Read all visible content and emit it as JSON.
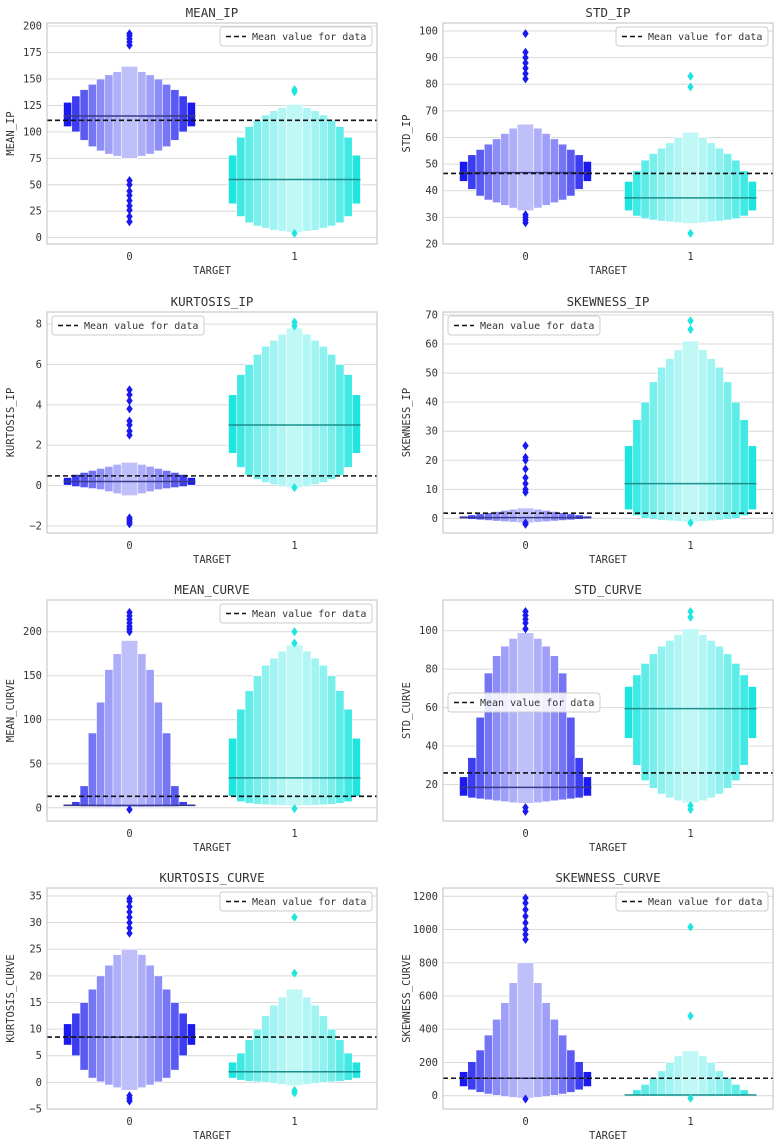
{
  "colors": {
    "target0": "#1a1aee",
    "target1": "#1fe5e0",
    "median0": "#3a3a8a",
    "median1": "#1b8f8b",
    "meanline": "#111111",
    "grid": "#d9d9d9",
    "frame": "#bfbfbf"
  },
  "chart_data": [
    {
      "type": "boxen",
      "title": "MEAN_IP",
      "xlabel": "TARGET",
      "ylabel": "MEAN_IP",
      "categories": [
        "0",
        "1"
      ],
      "ylim": [
        -6,
        203
      ],
      "yticks": [
        0,
        25,
        50,
        75,
        100,
        125,
        150,
        175,
        200
      ],
      "legend": {
        "label": "Mean value for data",
        "position": "top-right"
      },
      "mean_value": 111,
      "groups": [
        {
          "median": 115,
          "boxes": [
            [
              105,
              128
            ],
            [
              100,
              134
            ],
            [
              92,
              140
            ],
            [
              86,
              145
            ],
            [
              82,
              150
            ],
            [
              79,
              154
            ],
            [
              77,
              157
            ],
            [
              75,
              162
            ]
          ],
          "outliers": [
            15,
            20,
            26,
            30,
            35,
            40,
            44,
            50,
            54,
            182,
            185,
            188,
            191,
            193
          ]
        },
        {
          "median": 55,
          "boxes": [
            [
              32,
              78
            ],
            [
              20,
              95
            ],
            [
              14,
              105
            ],
            [
              11,
              111
            ],
            [
              9,
              116
            ],
            [
              7,
              120
            ],
            [
              6,
              123
            ],
            [
              5,
              126
            ]
          ],
          "outliers": [
            4,
            138,
            140
          ]
        }
      ]
    },
    {
      "type": "boxen",
      "title": "STD_IP",
      "xlabel": "TARGET",
      "ylabel": "STD_IP",
      "categories": [
        "0",
        "1"
      ],
      "ylim": [
        20,
        103
      ],
      "yticks": [
        20,
        30,
        40,
        50,
        60,
        70,
        80,
        90,
        100
      ],
      "legend": {
        "label": "Mean value for data",
        "position": "top-right"
      },
      "mean_value": 46.5,
      "groups": [
        {
          "median": 46.8,
          "boxes": [
            [
              43.5,
              51
            ],
            [
              40.5,
              53.5
            ],
            [
              38,
              55.5
            ],
            [
              36.5,
              57.5
            ],
            [
              35.5,
              59.5
            ],
            [
              34.5,
              61.5
            ],
            [
              33.5,
              63.5
            ],
            [
              32.5,
              65
            ]
          ],
          "outliers": [
            28,
            29,
            30,
            31,
            82,
            84,
            86,
            88,
            90,
            92,
            99
          ]
        },
        {
          "median": 37.3,
          "boxes": [
            [
              32.5,
              43.5
            ],
            [
              30.5,
              47.5
            ],
            [
              29.5,
              51.5
            ],
            [
              29,
              54
            ],
            [
              28.6,
              56
            ],
            [
              28.3,
              58
            ],
            [
              28,
              60
            ],
            [
              27.7,
              62
            ]
          ],
          "outliers": [
            24,
            79,
            83
          ]
        }
      ]
    },
    {
      "type": "boxen",
      "title": "KURTOSIS_IP",
      "xlabel": "TARGET",
      "ylabel": "KURTOSIS_IP",
      "categories": [
        "0",
        "1"
      ],
      "ylim": [
        -2.35,
        8.6
      ],
      "yticks": [
        -2,
        0,
        2,
        4,
        6,
        8
      ],
      "legend": {
        "label": "Mean value for data",
        "position": "top-left"
      },
      "mean_value": 0.48,
      "groups": [
        {
          "median": 0.2,
          "boxes": [
            [
              0.02,
              0.4
            ],
            [
              -0.05,
              0.55
            ],
            [
              -0.1,
              0.65
            ],
            [
              -0.15,
              0.75
            ],
            [
              -0.2,
              0.85
            ],
            [
              -0.3,
              0.95
            ],
            [
              -0.4,
              1.05
            ],
            [
              -0.5,
              1.15
            ]
          ],
          "outliers": [
            -1.9,
            -1.8,
            -1.7,
            -1.6,
            2.5,
            2.7,
            3.0,
            3.2,
            3.8,
            4.2,
            4.5,
            4.75
          ]
        },
        {
          "median": 3.0,
          "boxes": [
            [
              1.6,
              4.5
            ],
            [
              0.9,
              5.5
            ],
            [
              0.5,
              6.0
            ],
            [
              0.3,
              6.5
            ],
            [
              0.15,
              6.9
            ],
            [
              0.05,
              7.2
            ],
            [
              -0.05,
              7.5
            ],
            [
              -0.1,
              7.8
            ]
          ],
          "outliers": [
            -0.1,
            7.9,
            8.1
          ]
        }
      ]
    },
    {
      "type": "boxen",
      "title": "SKEWNESS_IP",
      "xlabel": "TARGET",
      "ylabel": "SKEWNESS_IP",
      "categories": [
        "0",
        "1"
      ],
      "ylim": [
        -5,
        71
      ],
      "yticks": [
        0,
        10,
        20,
        30,
        40,
        50,
        60,
        70
      ],
      "legend": {
        "label": "Mean value for data",
        "position": "top-left"
      },
      "mean_value": 1.8,
      "groups": [
        {
          "median": 0.3,
          "boxes": [
            [
              -0.1,
              0.8
            ],
            [
              -0.3,
              1.2
            ],
            [
              -0.5,
              1.6
            ],
            [
              -0.7,
              2.0
            ],
            [
              -0.9,
              2.4
            ],
            [
              -1.1,
              2.8
            ],
            [
              -1.3,
              3.2
            ],
            [
              -1.5,
              3.6
            ]
          ],
          "outliers": [
            -2,
            -1.5,
            9,
            10,
            12,
            14,
            17,
            20,
            21,
            25
          ]
        },
        {
          "median": 12,
          "boxes": [
            [
              3,
              25
            ],
            [
              1,
              34
            ],
            [
              0,
              40
            ],
            [
              -0.3,
              47
            ],
            [
              -0.6,
              52
            ],
            [
              -0.8,
              55
            ],
            [
              -1,
              58
            ],
            [
              -1.2,
              61
            ]
          ],
          "outliers": [
            -1.5,
            65,
            68
          ]
        }
      ]
    },
    {
      "type": "boxen",
      "title": "MEAN_CURVE",
      "xlabel": "TARGET",
      "ylabel": "MEAN_CURVE",
      "categories": [
        "0",
        "1"
      ],
      "ylim": [
        -15,
        236
      ],
      "yticks": [
        0,
        50,
        100,
        150,
        200
      ],
      "legend": {
        "label": "Mean value for data",
        "position": "top-right"
      },
      "mean_value": 13,
      "groups": [
        {
          "median": 2.8,
          "boxes": [
            [
              2,
              4
            ],
            [
              1.7,
              7
            ],
            [
              1.4,
              25
            ],
            [
              1.2,
              85
            ],
            [
              1.0,
              120
            ],
            [
              0.8,
              157
            ],
            [
              0.6,
              175
            ],
            [
              0.5,
              190
            ]
          ],
          "outliers": [
            -2,
            200,
            203,
            206,
            210,
            214,
            218,
            222
          ]
        },
        {
          "median": 34,
          "boxes": [
            [
              13,
              79
            ],
            [
              7,
              112
            ],
            [
              5,
              133
            ],
            [
              4,
              150
            ],
            [
              3.5,
              162
            ],
            [
              3,
              170
            ],
            [
              2.6,
              178
            ],
            [
              2.2,
              185
            ]
          ],
          "outliers": [
            -1,
            187,
            200
          ]
        }
      ]
    },
    {
      "type": "boxen",
      "title": "STD_CURVE",
      "xlabel": "TARGET",
      "ylabel": "STD_CURVE",
      "categories": [
        "0",
        "1"
      ],
      "ylim": [
        1,
        116
      ],
      "yticks": [
        20,
        40,
        60,
        80,
        100
      ],
      "legend": {
        "label": "Mean value for data",
        "position": "center-left"
      },
      "mean_value": 26,
      "groups": [
        {
          "median": 18.5,
          "boxes": [
            [
              14,
              24
            ],
            [
              13,
              34
            ],
            [
              12.5,
              55
            ],
            [
              12,
              78
            ],
            [
              11.5,
              87
            ],
            [
              11,
              92
            ],
            [
              10.5,
              96
            ],
            [
              10.2,
              99
            ]
          ],
          "outliers": [
            6,
            8,
            101,
            104,
            106,
            108,
            110
          ]
        },
        {
          "median": 59.5,
          "boxes": [
            [
              44,
              71
            ],
            [
              30,
              77
            ],
            [
              22,
              83
            ],
            [
              18,
              88
            ],
            [
              15,
              92
            ],
            [
              13,
              95
            ],
            [
              11.5,
              98
            ],
            [
              10.5,
              101
            ]
          ],
          "outliers": [
            7,
            9,
            107,
            110
          ]
        }
      ]
    },
    {
      "type": "boxen",
      "title": "KURTOSIS_CURVE",
      "xlabel": "TARGET",
      "ylabel": "KURTOSIS_CURVE",
      "categories": [
        "0",
        "1"
      ],
      "ylim": [
        -5,
        36.5
      ],
      "yticks": [
        -5,
        0,
        5,
        10,
        15,
        20,
        25,
        30,
        35
      ],
      "legend": {
        "label": "Mean value for data",
        "position": "top-right"
      },
      "mean_value": 8.5,
      "groups": [
        {
          "median": 8.5,
          "boxes": [
            [
              7,
              11
            ],
            [
              5,
              13
            ],
            [
              2.3,
              15
            ],
            [
              0.8,
              17.5
            ],
            [
              0.1,
              20
            ],
            [
              -0.5,
              22
            ],
            [
              -1,
              24
            ],
            [
              -1.5,
              25
            ]
          ],
          "outliers": [
            -3.5,
            -3,
            -2.5,
            28,
            29,
            30,
            31,
            32,
            33,
            34,
            34.5
          ]
        },
        {
          "median": 2.0,
          "boxes": [
            [
              0.8,
              3.8
            ],
            [
              0.4,
              5.5
            ],
            [
              0.2,
              8
            ],
            [
              0.1,
              10
            ],
            [
              0,
              12.5
            ],
            [
              -0.2,
              14.5
            ],
            [
              -0.4,
              16
            ],
            [
              -0.6,
              17.5
            ]
          ],
          "outliers": [
            -2,
            -1.5,
            20.5,
            31
          ]
        }
      ]
    },
    {
      "type": "boxen",
      "title": "SKEWNESS_CURVE",
      "xlabel": "TARGET",
      "ylabel": "SKEWNESS_CURVE",
      "categories": [
        "0",
        "1"
      ],
      "ylim": [
        -80,
        1250
      ],
      "yticks": [
        0,
        200,
        400,
        600,
        800,
        1000,
        1200
      ],
      "legend": {
        "label": "Mean value for data",
        "position": "top-right"
      },
      "mean_value": 105,
      "groups": [
        {
          "median": 105,
          "boxes": [
            [
              55,
              145
            ],
            [
              35,
              205
            ],
            [
              20,
              275
            ],
            [
              10,
              365
            ],
            [
              2,
              460
            ],
            [
              -5,
              560
            ],
            [
              -10,
              680
            ],
            [
              -15,
              800
            ]
          ],
          "outliers": [
            -20,
            940,
            970,
            1000,
            1040,
            1080,
            1120,
            1160,
            1190
          ]
        },
        {
          "median": 4,
          "boxes": [
            [
              0,
              8
            ],
            [
              -1,
              35
            ],
            [
              -2,
              68
            ],
            [
              -3,
              110
            ],
            [
              -4,
              150
            ],
            [
              -5,
              200
            ],
            [
              -6,
              240
            ],
            [
              -7,
              270
            ]
          ],
          "outliers": [
            -15,
            480,
            1015
          ]
        }
      ]
    }
  ]
}
